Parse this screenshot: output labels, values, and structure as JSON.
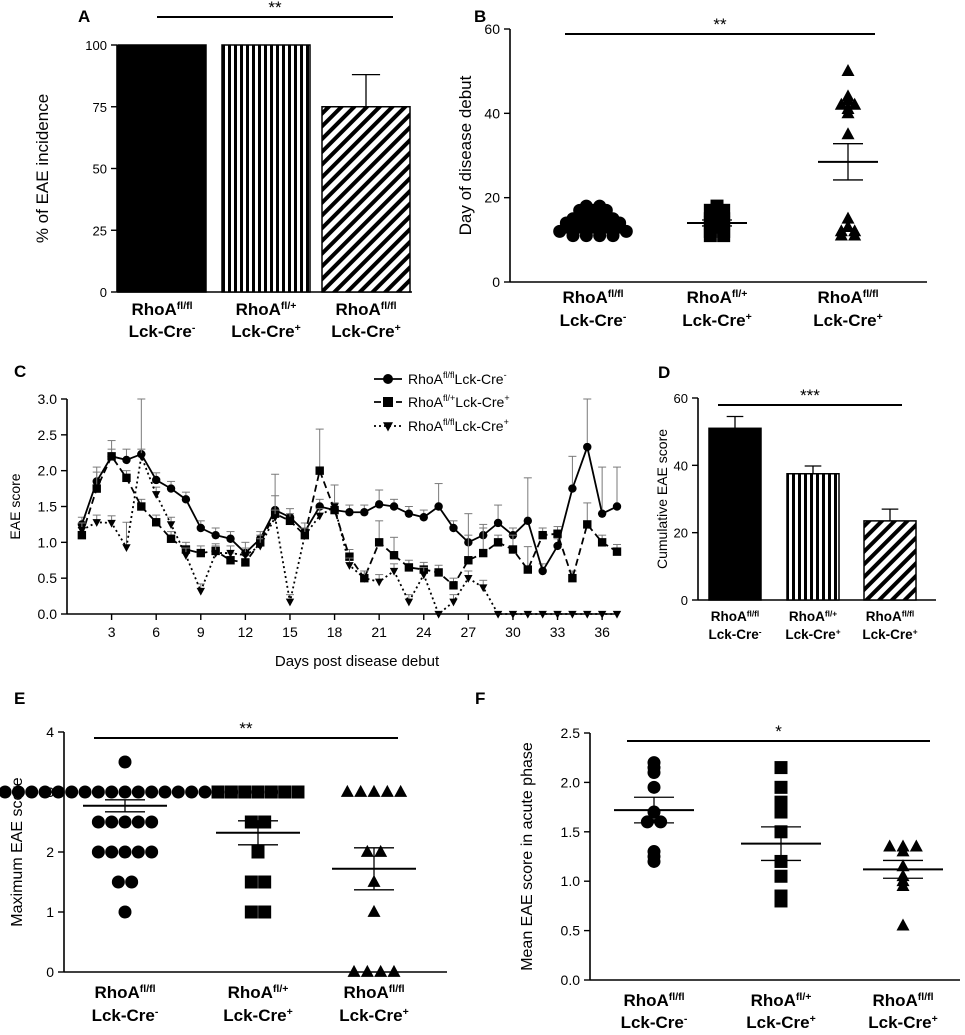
{
  "figure": {
    "groups": [
      {
        "name": "RhoA",
        "sup": "fl/fl",
        "line2": "Lck-Cre",
        "line2sup": "-"
      },
      {
        "name": "RhoA",
        "sup": "fl/+",
        "line2": "Lck-Cre",
        "line2sup": "+"
      },
      {
        "name": "RhoA",
        "sup": "fl/fl",
        "line2": "Lck-Cre",
        "line2sup": "+"
      }
    ]
  },
  "chart_data": [
    {
      "panel": "A",
      "type": "bar",
      "ylabel": "% of EAE incidence",
      "ylim": [
        0,
        100
      ],
      "yticks": [
        0,
        25,
        50,
        75,
        100
      ],
      "values": [
        100,
        100,
        75
      ],
      "errors": [
        0,
        0,
        13
      ],
      "fills": [
        "solid",
        "vertical",
        "diagonal"
      ],
      "significance": "**"
    },
    {
      "panel": "B",
      "type": "scatter",
      "ylabel": "Day of disease debut",
      "ylim": [
        0,
        60
      ],
      "yticks": [
        0,
        20,
        40,
        60
      ],
      "markers": [
        "circle",
        "square",
        "triangle"
      ],
      "series": [
        {
          "values": [
            18,
            18,
            17,
            17,
            17,
            16,
            16,
            16,
            15,
            15,
            15,
            15,
            14,
            14,
            14,
            14,
            14,
            13,
            13,
            13,
            13,
            13,
            12,
            12,
            12,
            12,
            12,
            12,
            11,
            11,
            11,
            11
          ],
          "mean": 13.5,
          "sem": 0.5
        },
        {
          "values": [
            18,
            17,
            17,
            16,
            15,
            15,
            14,
            14,
            13,
            12,
            12,
            11,
            11
          ],
          "mean": 14,
          "sem": 0.7
        },
        {
          "values": [
            50,
            44,
            43,
            42,
            42,
            41,
            40,
            35,
            15,
            13,
            12,
            12,
            11,
            11
          ],
          "mean": 28.5,
          "sem": 4.3
        }
      ],
      "significance": "**"
    },
    {
      "panel": "C",
      "type": "line",
      "xlabel": "Days post disease debut",
      "ylabel": "EAE score",
      "xlim": [
        0,
        37
      ],
      "ylim": [
        0,
        3
      ],
      "xticks": [
        3,
        6,
        9,
        12,
        15,
        18,
        21,
        24,
        27,
        30,
        33,
        36
      ],
      "yticks": [
        0.0,
        0.5,
        1.0,
        1.5,
        2.0,
        2.5,
        3.0
      ],
      "x": [
        1,
        2,
        3,
        4,
        5,
        6,
        7,
        8,
        9,
        10,
        11,
        12,
        13,
        14,
        15,
        16,
        17,
        18,
        19,
        20,
        21,
        22,
        23,
        24,
        25,
        26,
        27,
        28,
        29,
        30,
        31,
        32,
        33,
        34,
        35,
        36,
        37
      ],
      "series": [
        {
          "name": "RhoA",
          "sup": "fl/fl",
          "suffix": "Lck-Cre",
          "suffix_sup": "-",
          "marker": "circle",
          "dash": "solid",
          "values": [
            1.25,
            1.85,
            2.2,
            2.15,
            2.23,
            1.87,
            1.75,
            1.6,
            1.2,
            1.1,
            1.05,
            0.85,
            1.05,
            1.45,
            1.35,
            1.15,
            1.5,
            1.45,
            1.42,
            1.42,
            1.53,
            1.5,
            1.4,
            1.35,
            1.5,
            1.2,
            1.0,
            1.1,
            1.27,
            1.1,
            1.3,
            0.6,
            0.95,
            1.75,
            2.33,
            1.4,
            1.5
          ],
          "errors": [
            0.1,
            0.13,
            0.22,
            0.15,
            0.77,
            0.1,
            0.1,
            0.1,
            0.1,
            0.1,
            0.1,
            0.15,
            0.1,
            0.5,
            0.12,
            0.12,
            0.1,
            0.1,
            0.1,
            0.1,
            0.2,
            0.1,
            0.1,
            0.1,
            0.32,
            0.1,
            0.1,
            0.1,
            0.25,
            0.1,
            0.6,
            0.1,
            0.1,
            0.45,
            0.67,
            0.65,
            0.55
          ]
        },
        {
          "name": "RhoA",
          "sup": "fl/+",
          "suffix": "Lck-Cre",
          "suffix_sup": "+",
          "marker": "square",
          "dash": "dashed",
          "values": [
            1.1,
            1.75,
            2.2,
            1.9,
            1.5,
            1.28,
            1.05,
            0.9,
            0.85,
            0.88,
            0.75,
            0.72,
            1.0,
            1.4,
            1.3,
            1.1,
            2.0,
            1.45,
            0.8,
            0.5,
            1.0,
            0.82,
            0.65,
            0.62,
            0.58,
            0.4,
            0.75,
            0.85,
            1.0,
            0.9,
            0.62,
            1.1,
            1.12,
            0.5,
            1.25,
            1.0,
            0.87
          ],
          "errors": [
            0.1,
            0.3,
            0.1,
            0.1,
            0.1,
            0.1,
            0.1,
            0.1,
            0.1,
            0.1,
            0.1,
            0.12,
            0.1,
            0.25,
            0.1,
            0.1,
            0.58,
            0.1,
            0.1,
            0.1,
            0.3,
            0.25,
            0.1,
            0.1,
            0.1,
            0.1,
            0.65,
            0.4,
            0.1,
            0.2,
            0.32,
            0.1,
            0.1,
            0.1,
            0.3,
            0.1,
            0.1
          ]
        },
        {
          "name": "RhoA",
          "sup": "fl/fl",
          "suffix": "Lck-Cre",
          "suffix_sup": "+",
          "marker": "triangle",
          "dash": "dotted",
          "values": [
            1.17,
            1.28,
            1.27,
            0.93,
            2.2,
            1.67,
            1.25,
            0.82,
            0.32,
            0.85,
            0.85,
            0.82,
            0.95,
            1.35,
            0.17,
            1.1,
            1.37,
            1.5,
            0.68,
            0.5,
            0.45,
            0.6,
            0.17,
            0.55,
            0.0,
            0.17,
            0.5,
            0.37,
            0.0,
            0.0,
            0.0,
            0.0,
            0.0,
            0.0,
            0.0,
            0.0,
            0.0
          ],
          "errors": [
            0.1,
            0.1,
            0.1,
            0.35,
            0.1,
            0.1,
            0.1,
            0.1,
            0.1,
            0.1,
            0.1,
            0.1,
            0.1,
            0.1,
            0.1,
            0.1,
            0.1,
            0.3,
            0.1,
            0.1,
            0.1,
            0.1,
            0.1,
            0.1,
            0.0,
            0.1,
            0.1,
            0.1,
            0.0,
            0.0,
            0.0,
            0.0,
            0.0,
            0.0,
            0.0,
            0.0,
            0.0
          ]
        }
      ]
    },
    {
      "panel": "D",
      "type": "bar",
      "ylabel": "Cumulative EAE score",
      "ylim": [
        0,
        60
      ],
      "yticks": [
        0,
        20,
        40,
        60
      ],
      "values": [
        51,
        37.5,
        23.5
      ],
      "errors": [
        3.5,
        2.3,
        3.5
      ],
      "fills": [
        "solid",
        "vertical",
        "diagonal"
      ],
      "significance": "***"
    },
    {
      "panel": "E",
      "type": "scatter",
      "ylabel": "Maximum EAE score",
      "ylim": [
        0,
        4
      ],
      "yticks": [
        0,
        1,
        2,
        3,
        4
      ],
      "markers": [
        "circle",
        "square",
        "triangle"
      ],
      "series": [
        {
          "values": [
            3.5,
            3,
            3,
            3,
            3,
            3,
            3,
            3,
            3,
            3,
            3,
            3,
            3,
            3,
            3,
            3,
            3,
            3,
            3,
            3,
            3,
            3,
            3,
            3,
            2.5,
            2.5,
            2.5,
            2.5,
            2.5,
            2,
            2,
            2,
            2,
            2,
            1.5,
            1.5,
            1
          ],
          "mean": 2.77,
          "sem": 0.1
        },
        {
          "values": [
            3,
            3,
            3,
            3,
            3,
            3,
            3,
            2.5,
            2.5,
            2,
            1.5,
            1.5,
            1,
            1
          ],
          "mean": 2.32,
          "sem": 0.2
        },
        {
          "values": [
            3,
            3,
            3,
            3,
            3,
            2,
            2,
            1.5,
            1,
            0,
            0,
            0,
            0
          ],
          "mean": 1.72,
          "sem": 0.35
        }
      ],
      "significance": "**"
    },
    {
      "panel": "F",
      "type": "scatter",
      "ylabel": "Mean EAE score in acute phase",
      "ylim": [
        0,
        2.5
      ],
      "yticks": [
        0.0,
        0.5,
        1.0,
        1.5,
        2.0,
        2.5
      ],
      "markers": [
        "circle",
        "square",
        "triangle"
      ],
      "series": [
        {
          "values": [
            2.2,
            2.15,
            2.1,
            1.95,
            1.7,
            1.6,
            1.6,
            1.3,
            1.25,
            1.2
          ],
          "mean": 1.72,
          "sem": 0.13
        },
        {
          "values": [
            2.15,
            1.95,
            1.8,
            1.7,
            1.5,
            1.2,
            1.05,
            0.85,
            0.8
          ],
          "mean": 1.38,
          "sem": 0.17
        },
        {
          "values": [
            1.35,
            1.35,
            1.35,
            1.3,
            1.15,
            1.05,
            1.0,
            0.95,
            0.55
          ],
          "mean": 1.12,
          "sem": 0.09
        }
      ],
      "significance": "*"
    }
  ]
}
